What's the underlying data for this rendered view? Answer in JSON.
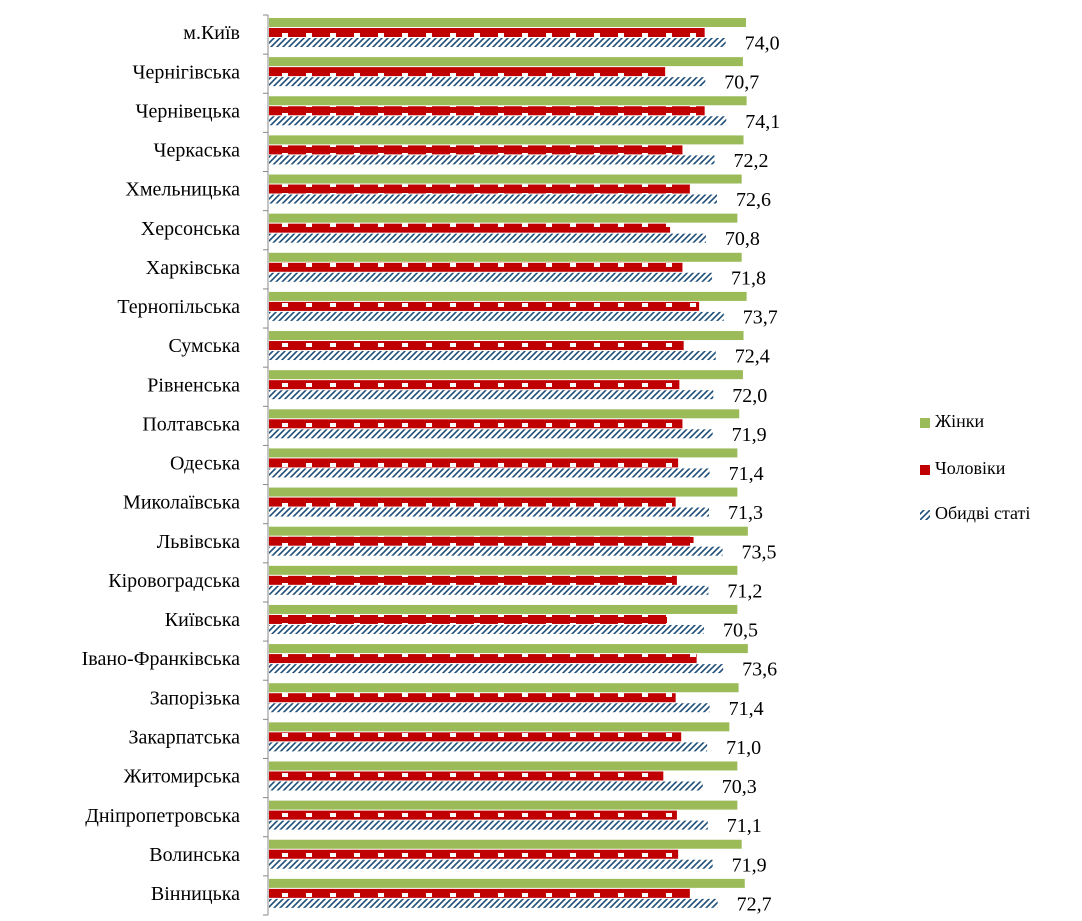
{
  "chart_data": {
    "type": "bar",
    "orientation": "horizontal",
    "categories": [
      "м.Київ",
      "Чернігівська",
      "Чернівецька",
      "Черкаська",
      "Хмельницька",
      "Херсонська",
      "Харківська",
      "Тернопільська",
      "Сумська",
      "Рівненська",
      "Полтавська",
      "Одеська",
      "Миколаївська",
      "Львівська",
      "Кіровоградська",
      "Київська",
      "Івано-Франківська",
      "Запорізька",
      "Закарпатська",
      "Житомирська",
      "Дніпропетровська",
      "Волинська",
      "Вінницька"
    ],
    "series": [
      {
        "name": "Жінки",
        "color": "#9BBB59",
        "values": [
          77.3,
          76.8,
          77.4,
          76.9,
          76.6,
          75.9,
          76.6,
          77.4,
          76.9,
          76.8,
          76.2,
          75.9,
          75.9,
          77.6,
          75.9,
          75.9,
          77.6,
          76.1,
          74.6,
          75.9,
          75.9,
          76.6,
          77.1
        ]
      },
      {
        "name": "Чоловіки",
        "color": "#C00000",
        "values": [
          70.6,
          64.2,
          70.6,
          67.0,
          68.2,
          65.0,
          67.0,
          69.7,
          67.2,
          66.5,
          67.0,
          66.3,
          65.9,
          68.8,
          66.1,
          64.5,
          69.3,
          65.9,
          66.8,
          63.9,
          66.1,
          66.3,
          68.2
        ]
      },
      {
        "name": "Обидві статі",
        "color": "#1F4E79",
        "values": [
          74.0,
          70.7,
          74.1,
          72.2,
          72.6,
          70.8,
          71.8,
          73.7,
          72.4,
          72.0,
          71.9,
          71.4,
          71.3,
          73.5,
          71.2,
          70.5,
          73.6,
          71.4,
          71.0,
          70.3,
          71.1,
          71.9,
          72.7
        ]
      }
    ],
    "data_labels": [
      "74,0",
      "70,7",
      "74,1",
      "72,2",
      "72,6",
      "70,8",
      "71,8",
      "73,7",
      "72,4",
      "72,0",
      "71,9",
      "71,4",
      "71,3",
      "73,5",
      "71,2",
      "70,5",
      "73,6",
      "71,4",
      "71,0",
      "70,3",
      "71,1",
      "71,9",
      "72,7"
    ],
    "legend_position": "right",
    "grid": false
  }
}
